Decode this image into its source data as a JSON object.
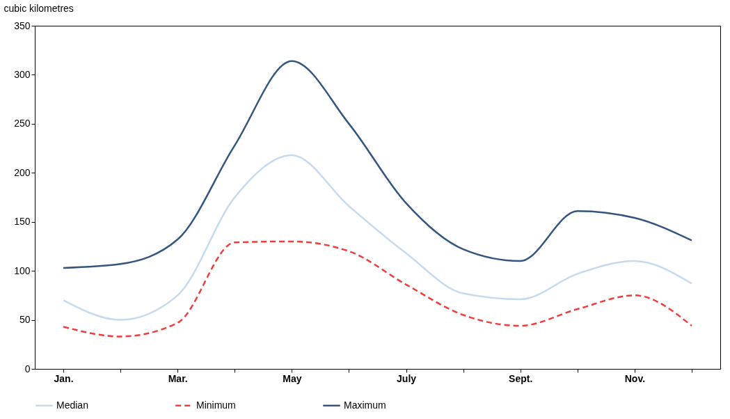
{
  "chart_data": {
    "type": "line",
    "ylabel": "cubic kilometres",
    "categories": [
      "Jan.",
      null,
      "Mar.",
      null,
      "May",
      null,
      "July",
      null,
      "Sept.",
      null,
      "Nov.",
      null
    ],
    "series": [
      {
        "name": "Median",
        "color": "#c5daee",
        "line_style": "solid",
        "values": [
          70,
          50,
          75,
          175,
          218,
          166,
          118,
          77,
          71,
          97,
          110,
          87
        ]
      },
      {
        "name": "Minimum",
        "color": "#f03c3c",
        "line_style": "dashed",
        "values": [
          43,
          33,
          47,
          129,
          130,
          120,
          86,
          55,
          44,
          61,
          75,
          44
        ]
      },
      {
        "name": "Maximum",
        "color": "#34557f",
        "line_style": "solid",
        "values": [
          103,
          107,
          132,
          228,
          314,
          250,
          169,
          122,
          110,
          161,
          154,
          131
        ]
      }
    ],
    "ylim": [
      0,
      350
    ],
    "yticks": [
      0,
      50,
      100,
      150,
      200,
      250,
      300,
      350
    ],
    "grid": false,
    "legend": "bottom",
    "marker": "none"
  }
}
